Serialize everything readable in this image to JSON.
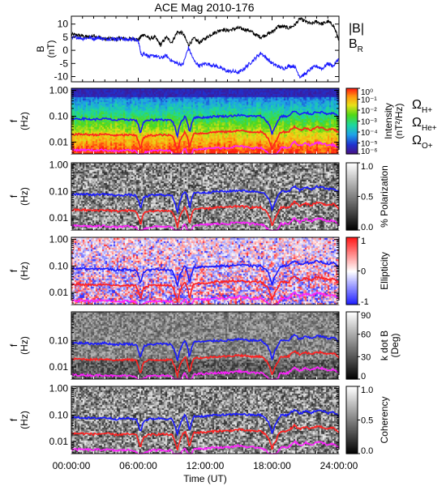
{
  "chart_data": [
    {
      "type": "line",
      "title": "ACE Mag 2010-176",
      "ylabel": "B\n(nT)",
      "ylim": [
        -12,
        13
      ],
      "yticks": [
        10,
        5,
        0,
        -5,
        -10
      ],
      "legend": [
        {
          "label": "|B|",
          "color": "#000000"
        },
        {
          "label": "B_R",
          "color": "#1a1aff"
        }
      ],
      "series": [
        {
          "name": "|B|",
          "color": "#000000",
          "x": [
            0,
            0.5,
            1,
            1.5,
            2,
            2.5,
            3,
            3.5,
            4,
            4.5,
            5,
            5.5,
            6,
            6.3,
            6.5,
            7,
            7.5,
            8,
            8.5,
            9,
            9.5,
            10,
            10.5,
            11,
            11.5,
            12,
            12.5,
            13,
            13.5,
            14,
            14.5,
            15,
            15.5,
            16,
            16.5,
            17,
            17.5,
            18,
            18.5,
            19,
            19.5,
            20,
            20.5,
            21,
            21.5,
            22,
            22.5,
            23,
            23.5,
            24
          ],
          "y": [
            6,
            5.8,
            5.5,
            5,
            5.6,
            5,
            4.2,
            4.5,
            4.3,
            4.6,
            4.2,
            4.5,
            4,
            5.5,
            6,
            4.5,
            5,
            2,
            5,
            3,
            7,
            6.5,
            2,
            4.5,
            3,
            4.5,
            6,
            7,
            8,
            7.5,
            8,
            8.5,
            8,
            7.5,
            6,
            5,
            6,
            7,
            9,
            9,
            8.5,
            9.5,
            12,
            11,
            10,
            11,
            10,
            11,
            9.5,
            4
          ]
        },
        {
          "name": "B_R",
          "color": "#1a1aff",
          "x": [
            0,
            0.5,
            1,
            1.5,
            2,
            2.5,
            3,
            3.5,
            4,
            4.5,
            5,
            5.5,
            6,
            6.3,
            6.5,
            7,
            7.5,
            8,
            8.5,
            9,
            9.5,
            10,
            10.5,
            11,
            11.5,
            12,
            12.5,
            13,
            13.5,
            14,
            14.5,
            15,
            15.5,
            16,
            16.5,
            17,
            17.5,
            18,
            18.5,
            19,
            19.5,
            20,
            20.5,
            21,
            21.5,
            22,
            22.5,
            23,
            23.5,
            24
          ],
          "y": [
            4.5,
            5,
            4.5,
            4.8,
            4.5,
            4.8,
            4.2,
            4.5,
            4.3,
            4.5,
            4,
            4.3,
            3.5,
            -2,
            -1,
            -2.5,
            -2,
            -3,
            -2,
            -4,
            -5,
            -5.5,
            1,
            -4,
            -6,
            -5,
            -5.5,
            -6,
            -7,
            -8,
            -8,
            -8.5,
            -7,
            -5,
            -3,
            -1,
            -3,
            -5,
            -6,
            -7,
            -6,
            -6,
            -10,
            -9,
            -7,
            -6,
            -7,
            -5,
            -6,
            -3
          ]
        }
      ]
    },
    {
      "type": "heatmap",
      "ylabel": "f\n(Hz)",
      "colorbar_label": "Intensity\n(nT²/Hz)",
      "colorbar_ticks": [
        "10⁰",
        "10⁻¹",
        "10⁻²",
        "10⁻³",
        "10⁻⁴",
        "10⁻⁵",
        "10⁻⁶"
      ],
      "colorbar_range": [
        -6.5,
        0
      ],
      "yticks": [
        "1.00",
        "0.10",
        "0.01"
      ],
      "ylim": [
        0.0035,
        1.2
      ],
      "scale": "log",
      "overlays": [
        "Ω_H+",
        "Ω_He+",
        "Ω_O+"
      ]
    },
    {
      "type": "heatmap",
      "ylabel": "f\n(Hz)",
      "colorbar_label": "% Polarization",
      "colorbar_ticks": [
        "1.0",
        "0.5",
        "0.0"
      ],
      "colorbar_range": [
        0,
        1
      ],
      "yticks": [
        "1.00",
        "0.10",
        "0.01"
      ],
      "ylim": [
        0.0035,
        1.2
      ],
      "scale": "log",
      "overlays": [
        "Ω_H+",
        "Ω_He+",
        "Ω_O+"
      ]
    },
    {
      "type": "heatmap",
      "ylabel": "f\n(Hz)",
      "colorbar_label": "Ellipticity",
      "colorbar_ticks": [
        "1",
        "0",
        "-1"
      ],
      "colorbar_range": [
        -1,
        1
      ],
      "yticks": [
        "1.00",
        "0.10",
        "0.01"
      ],
      "ylim": [
        0.0035,
        1.2
      ],
      "scale": "log",
      "overlays": [
        "Ω_H+",
        "Ω_He+",
        "Ω_O+"
      ]
    },
    {
      "type": "heatmap",
      "ylabel": "f\n(Hz)",
      "colorbar_label": "k dot B\n(Deg)",
      "colorbar_ticks": [
        "90",
        "60",
        "30",
        "0"
      ],
      "colorbar_range": [
        0,
        90
      ],
      "yticks": [
        "0.10",
        "0.01"
      ],
      "ylim": [
        0.0035,
        1.2
      ],
      "scale": "log",
      "overlays": [
        "Ω_H+",
        "Ω_He+",
        "Ω_O+"
      ]
    },
    {
      "type": "heatmap",
      "ylabel": "f\n(Hz)",
      "colorbar_label": "Coherency",
      "colorbar_ticks": [
        "1.0",
        "0.5",
        "0.0"
      ],
      "colorbar_range": [
        0,
        1
      ],
      "yticks": [
        "1.00",
        "0.10",
        "0.01"
      ],
      "ylim": [
        0.0035,
        1.2
      ],
      "scale": "log",
      "overlays": [
        "Ω_H+",
        "Ω_He+",
        "Ω_O+"
      ]
    }
  ],
  "xaxis": {
    "label": "Time (UT)",
    "ticks": [
      "00:00:00",
      "06:00:00",
      "12:00:00",
      "18:00:00",
      "24:00:00"
    ],
    "xlim": [
      0,
      24
    ]
  },
  "cyclotron_lines": {
    "labels": [
      "Ω",
      "Ω",
      "Ω"
    ],
    "subscripts": [
      "H+",
      "He+",
      "O+"
    ],
    "colors": [
      "#1a1aff",
      "#ff2020",
      "#ff20ff"
    ],
    "hours": [
      0,
      1,
      2,
      3,
      4,
      5,
      5.8,
      6.2,
      6.5,
      7,
      8,
      9,
      9.5,
      10.2,
      10.6,
      11,
      12,
      13,
      14,
      15,
      16,
      17,
      17.6,
      18,
      18.4,
      18.8,
      19.5,
      20,
      20.5,
      21,
      21.5,
      22,
      22.5,
      23,
      23.5,
      24
    ],
    "f_H": [
      0.08,
      0.08,
      0.075,
      0.08,
      0.07,
      0.075,
      0.07,
      0.02,
      0.06,
      0.07,
      0.075,
      0.07,
      0.015,
      0.1,
      0.02,
      0.09,
      0.09,
      0.1,
      0.1,
      0.11,
      0.1,
      0.1,
      0.06,
      0.02,
      0.05,
      0.1,
      0.1,
      0.16,
      0.11,
      0.14,
      0.12,
      0.15,
      0.14,
      0.12,
      0.13,
      0.09
    ],
    "f_He": [
      0.02,
      0.02,
      0.019,
      0.02,
      0.018,
      0.019,
      0.018,
      0.005,
      0.015,
      0.018,
      0.019,
      0.018,
      0.004,
      0.025,
      0.005,
      0.022,
      0.022,
      0.025,
      0.025,
      0.028,
      0.025,
      0.025,
      0.015,
      0.005,
      0.012,
      0.025,
      0.025,
      0.04,
      0.028,
      0.035,
      0.03,
      0.038,
      0.035,
      0.03,
      0.033,
      0.022
    ],
    "f_O": [
      0.005,
      0.005,
      0.0048,
      0.005,
      0.0045,
      0.0048,
      0.0045,
      0.0013,
      0.0038,
      0.0045,
      0.0048,
      0.0045,
      0.001,
      0.006,
      0.0013,
      0.0055,
      0.0055,
      0.006,
      0.006,
      0.007,
      0.006,
      0.006,
      0.004,
      0.0013,
      0.003,
      0.006,
      0.006,
      0.01,
      0.007,
      0.009,
      0.0075,
      0.0095,
      0.009,
      0.0075,
      0.008,
      0.0055
    ]
  }
}
